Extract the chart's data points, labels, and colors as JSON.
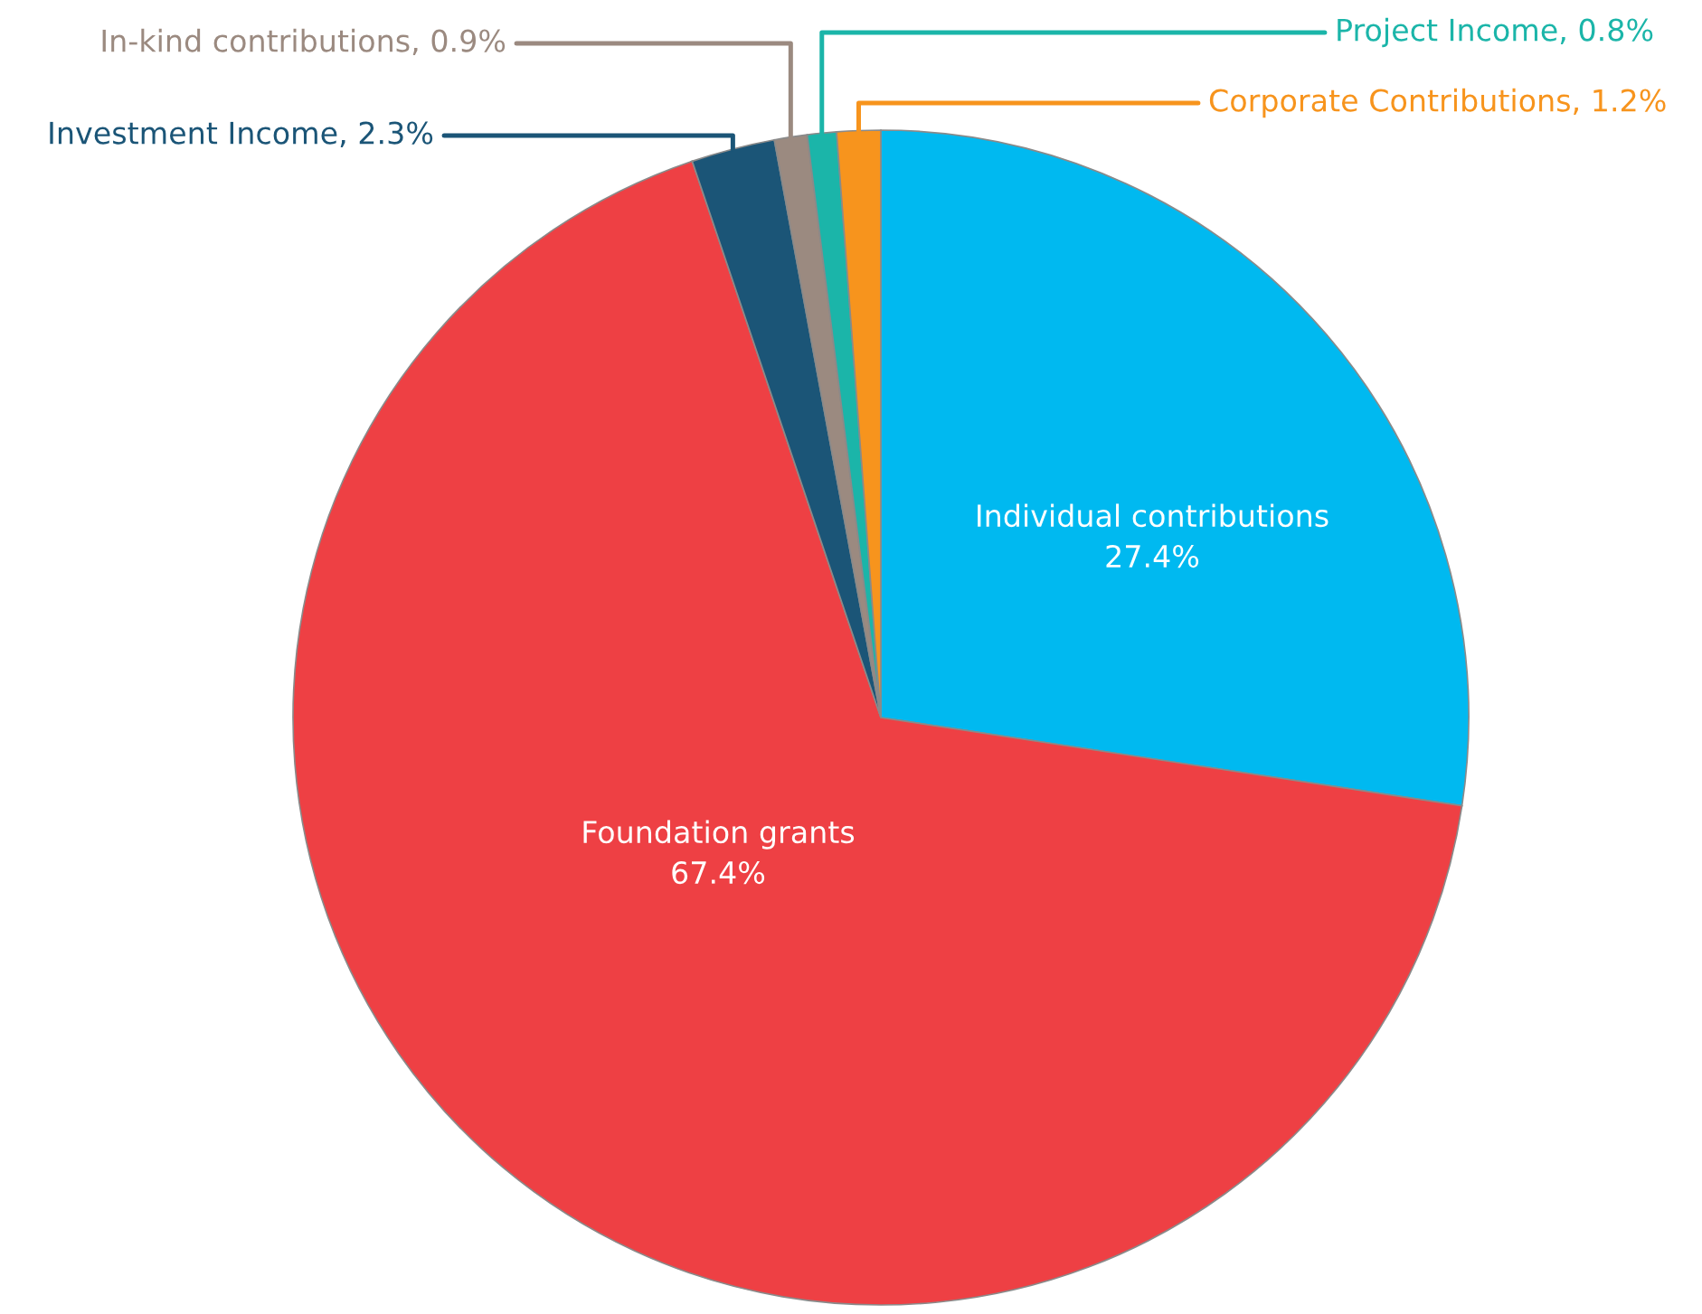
{
  "chart_data": {
    "type": "pie",
    "categories": [
      "Individual contributions",
      "Foundation grants",
      "Investment Income",
      "In-kind contributions",
      "Project Income",
      "Corporate Contributions"
    ],
    "values": [
      27.4,
      67.4,
      2.3,
      0.9,
      0.8,
      1.2
    ],
    "colors": [
      "#00b9f0",
      "#ee4044",
      "#1b5577",
      "#9b8a80",
      "#1bb5a9",
      "#f7941d"
    ],
    "value_labels": [
      "27.4%",
      "67.4%",
      "2.3%",
      "0.9%",
      "0.8%",
      "1.2%"
    ]
  }
}
